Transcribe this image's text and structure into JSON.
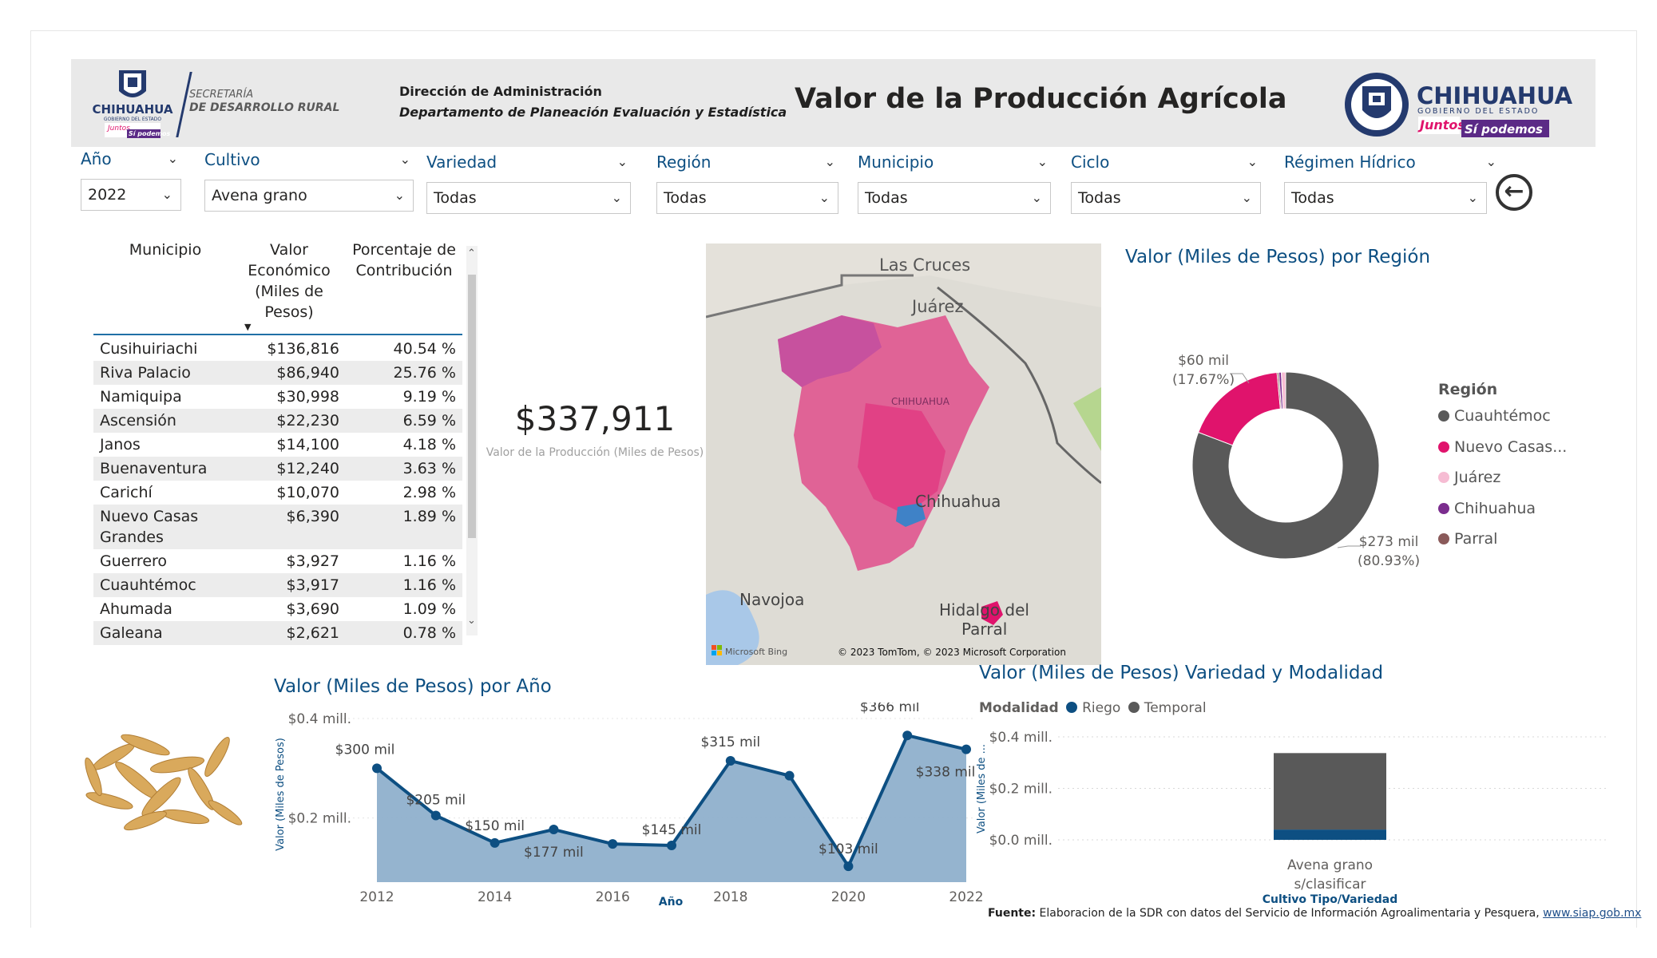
{
  "header": {
    "logo_left_name": "CHIHUAHUA",
    "logo_left_sub": "GOBIERNO DEL ESTADO",
    "logo_left_slogan_a": "Juntos",
    "logo_left_slogan_b": "Sí podemos",
    "secretaria_l1": "SECRETARÍA",
    "secretaria_l2": "DE DESARROLLO RURAL",
    "direccion": "Dirección de Administración",
    "departamento": "Departamento de Planeación Evaluación y Estadística",
    "title": "Valor de la Producción Agrícola",
    "logo_right_name": "CHIHUAHUA",
    "logo_right_sub": "GOBIERNO DEL ESTADO",
    "logo_right_slogan_a": "Juntos",
    "logo_right_slogan_b": "Sí podemos"
  },
  "filters": [
    {
      "label": "Año",
      "value": "2022"
    },
    {
      "label": "Cultivo",
      "value": "Avena grano"
    },
    {
      "label": "Variedad",
      "value": "Todas"
    },
    {
      "label": "Región",
      "value": "Todas"
    },
    {
      "label": "Municipio",
      "value": "Todas"
    },
    {
      "label": "Ciclo",
      "value": "Todas"
    },
    {
      "label": "Régimen Hídrico",
      "value": "Todas"
    }
  ],
  "back_icon": "arrow-left-circle-icon",
  "table": {
    "headers": [
      "Municipio",
      "Valor Económico (Miles de Pesos)",
      "Porcentaje de Contribución"
    ],
    "header_valor_lines": [
      "Valor",
      "Económico",
      "(Miles de",
      "Pesos)"
    ],
    "header_pct_lines": [
      "Porcentaje de",
      "Contribución"
    ],
    "rows": [
      {
        "municipio": "Cusihuiriachi",
        "valor": "$136,816",
        "pct": "40.54 %"
      },
      {
        "municipio": "Riva Palacio",
        "valor": "$86,940",
        "pct": "25.76 %"
      },
      {
        "municipio": "Namiquipa",
        "valor": "$30,998",
        "pct": "9.19 %"
      },
      {
        "municipio": "Ascensión",
        "valor": "$22,230",
        "pct": "6.59 %"
      },
      {
        "municipio": "Janos",
        "valor": "$14,100",
        "pct": "4.18 %"
      },
      {
        "municipio": "Buenaventura",
        "valor": "$12,240",
        "pct": "3.63 %"
      },
      {
        "municipio": "Carichí",
        "valor": "$10,070",
        "pct": "2.98 %"
      },
      {
        "municipio": "Nuevo Casas",
        "municipio2": "Grandes",
        "valor": "$6,390",
        "pct": "1.89 %"
      },
      {
        "municipio": "Guerrero",
        "valor": "$3,927",
        "pct": "1.16 %"
      },
      {
        "municipio": "Cuauhtémoc",
        "valor": "$3,917",
        "pct": "1.16 %"
      },
      {
        "municipio": "Ahumada",
        "valor": "$3,690",
        "pct": "1.09 %"
      },
      {
        "municipio": "Galeana",
        "valor": "$2,621",
        "pct": "0.78 %"
      }
    ]
  },
  "kpi": {
    "value": "$337,911",
    "caption": "Valor de la Producción (Miles de Pesos)"
  },
  "map": {
    "labels": [
      "Las Cruces",
      "Juárez",
      "CHIHUAHUA",
      "Chihuahua",
      "Navojoa",
      "Hidalgo del",
      "Parral"
    ],
    "bing": "Microsoft Bing",
    "copyright": "© 2023 TomTom, © 2023 Microsoft Corporation"
  },
  "region_chart": {
    "title": "Valor (Miles de Pesos) por Región",
    "legend_title": "Región",
    "legend": [
      {
        "name": "Cuauhtémoc",
        "color": "#595959"
      },
      {
        "name": "Nuevo Casas...",
        "color": "#e0136c"
      },
      {
        "name": "Juárez",
        "color": "#f6bcd3"
      },
      {
        "name": "Chihuahua",
        "color": "#7b2d8e"
      },
      {
        "name": "Parral",
        "color": "#8a5a5a"
      }
    ],
    "label_a1": "$60 mil",
    "label_a2": "(17.67%)",
    "label_b1": "$273 mil",
    "label_b2": "(80.93%)"
  },
  "year_chart": {
    "title": "Valor (Miles de Pesos) por Año",
    "ylabel": "Valor (Miles de Pesos)",
    "xlabel": "Año",
    "ytick_labels": [
      "$0.4 mill.",
      "$0.2 mill."
    ],
    "xtick_labels": [
      "2012",
      "2014",
      "2016",
      "2018",
      "2020",
      "2022"
    ],
    "point_labels": [
      "$300 mil",
      "$205 mil",
      "$150 mil",
      "$177 mil",
      "$145 mil",
      "$315 mil",
      "$103 mil",
      "$366 mil",
      "$338 mil"
    ]
  },
  "variety_chart": {
    "title": "Valor (Miles de Pesos) Variedad y Modalidad",
    "legend_title": "Modalidad",
    "legend": [
      {
        "name": "Riego",
        "color": "#0d4f82"
      },
      {
        "name": "Temporal",
        "color": "#595959"
      }
    ],
    "ylabel": "Valor (Miles de ...",
    "ytick_labels": [
      "$0.4 mill.",
      "$0.2 mill.",
      "$0.0 mill."
    ],
    "category_l1": "Avena grano",
    "category_l2": "s/clasificar",
    "xlabel": "Cultivo Tipo/Variedad"
  },
  "chart_data": [
    {
      "type": "pie",
      "title": "Valor (Miles de Pesos) por Región",
      "categories": [
        "Cuauhtémoc",
        "Nuevo Casas...",
        "Juárez",
        "Chihuahua",
        "Parral"
      ],
      "values": [
        273,
        60,
        2.5,
        1.5,
        1
      ],
      "colors": [
        "#595959",
        "#e0136c",
        "#f6bcd3",
        "#7b2d8e",
        "#8a5a5a"
      ]
    },
    {
      "type": "area",
      "title": "Valor (Miles de Pesos) por Año",
      "x": [
        2012,
        2013,
        2014,
        2015,
        2016,
        2017,
        2018,
        2019,
        2020,
        2021,
        2022
      ],
      "values": [
        300,
        205,
        150,
        177,
        148,
        145,
        315,
        285,
        103,
        366,
        338
      ],
      "ylim": [
        100,
        400
      ],
      "xlabel": "Año",
      "ylabel": "Valor (Miles de Pesos)"
    },
    {
      "type": "bar",
      "title": "Valor (Miles de Pesos) Variedad y Modalidad",
      "categories": [
        "Avena grano s/clasificar"
      ],
      "series": [
        {
          "name": "Riego",
          "values": [
            0.04
          ]
        },
        {
          "name": "Temporal",
          "values": [
            0.297
          ]
        }
      ],
      "ylim": [
        0,
        0.4
      ],
      "xlabel": "Cultivo Tipo/Variedad"
    }
  ]
}
